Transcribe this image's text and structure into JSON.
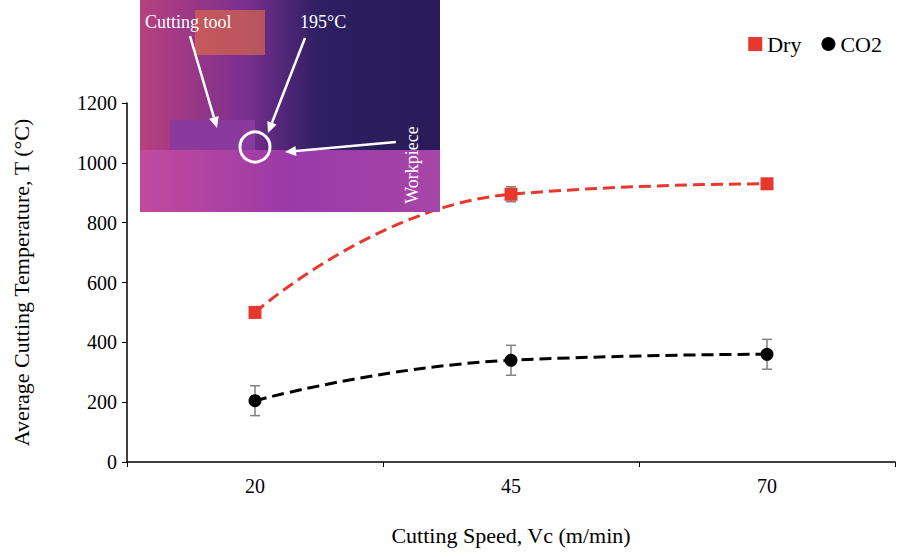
{
  "chart_data": {
    "type": "line",
    "x_label": "Cutting Speed, Vc (m/min)",
    "y_label": "Average Cutting Temperature, T (°C)",
    "categories": [
      "20",
      "45",
      "70"
    ],
    "series": [
      {
        "name": "Dry",
        "color": "#e8382e",
        "marker": "square",
        "values": [
          500,
          895,
          930
        ],
        "errors": [
          10,
          25,
          15
        ]
      },
      {
        "name": "CO2",
        "color": "#000000",
        "marker": "circle",
        "values": [
          205,
          340,
          360
        ],
        "errors": [
          50,
          50,
          50
        ]
      }
    ],
    "line_style": "dashed",
    "ylim": [
      0,
      1200
    ],
    "yticks": [
      0,
      200,
      400,
      600,
      800,
      1000,
      1200
    ],
    "grid": false,
    "legend": "top-right",
    "annotations": [
      "Cutting tool",
      "195°C",
      "Workpiece"
    ]
  }
}
